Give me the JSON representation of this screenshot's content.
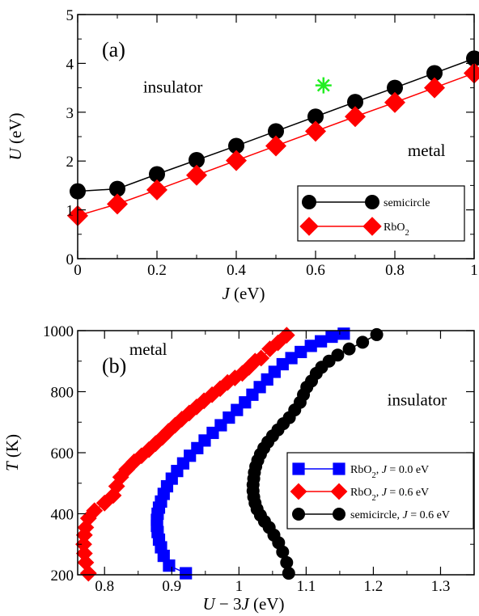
{
  "chart_data": [
    {
      "type": "line",
      "panel_label": "(a)",
      "xlabel_parts": [
        {
          "t": "J",
          "italic": true
        },
        {
          "t": " (eV)",
          "italic": false
        }
      ],
      "ylabel_parts": [
        {
          "t": "U",
          "italic": true
        },
        {
          "t": " (eV)",
          "italic": false
        }
      ],
      "xlim": [
        0,
        1
      ],
      "ylim": [
        0,
        5
      ],
      "xticks": [
        0,
        0.2,
        0.4,
        0.6,
        0.8,
        1
      ],
      "xtick_labels": [
        "0",
        "0.2",
        "0.4",
        "0.6",
        "0.8",
        "1"
      ],
      "yticks": [
        0,
        1,
        2,
        3,
        4,
        5
      ],
      "ytick_labels": [
        "0",
        "1",
        "2",
        "3",
        "4",
        "5"
      ],
      "grid": false,
      "legend_position": "bottom-right",
      "annotations": [
        {
          "text": "insulator",
          "x": 0.24,
          "y": 3.4
        },
        {
          "text": "metal",
          "x": 0.88,
          "y": 2.1
        }
      ],
      "star": {
        "x": 0.62,
        "y": 3.55,
        "color": "#22ee22"
      },
      "series": [
        {
          "name_parts": [
            {
              "t": "semicircle"
            }
          ],
          "marker": "circle",
          "color": "#000000",
          "x": [
            0,
            0.1,
            0.2,
            0.3,
            0.4,
            0.5,
            0.6,
            0.7,
            0.8,
            0.9,
            1.0
          ],
          "y": [
            1.38,
            1.43,
            1.73,
            2.02,
            2.31,
            2.61,
            2.91,
            3.21,
            3.5,
            3.8,
            4.1
          ]
        },
        {
          "name_parts": [
            {
              "t": "RbO"
            },
            {
              "t": "2",
              "sub": true
            }
          ],
          "marker": "diamond",
          "color": "#ff0000",
          "x": [
            0,
            0.1,
            0.2,
            0.3,
            0.4,
            0.5,
            0.6,
            0.7,
            0.8,
            0.9,
            1.0
          ],
          "y": [
            0.88,
            1.12,
            1.41,
            1.71,
            2.01,
            2.31,
            2.61,
            2.91,
            3.2,
            3.5,
            3.8
          ]
        }
      ]
    },
    {
      "type": "line",
      "panel_label": "(b)",
      "xlabel_parts": [
        {
          "t": "U",
          "italic": true
        },
        {
          "t": " − 3",
          "italic": false
        },
        {
          "t": "J",
          "italic": true
        },
        {
          "t": " (eV)",
          "italic": false
        }
      ],
      "ylabel_parts": [
        {
          "t": "T",
          "italic": true
        },
        {
          "t": " (K)",
          "italic": false
        }
      ],
      "xlim": [
        0.76,
        1.35
      ],
      "ylim": [
        200,
        1000
      ],
      "xticks": [
        0.8,
        0.9,
        1,
        1.1,
        1.2,
        1.3
      ],
      "xtick_labels": [
        "0.8",
        "0.9",
        "1",
        "1.1",
        "1.2",
        "1.3"
      ],
      "yticks": [
        200,
        400,
        600,
        800,
        1000
      ],
      "ytick_labels": [
        "200",
        "400",
        "600",
        "800",
        "1000"
      ],
      "grid": false,
      "legend_position": "bottom-right",
      "annotations": [
        {
          "text": "metal",
          "x": 0.865,
          "y": 920
        },
        {
          "text": "insulator",
          "x": 1.265,
          "y": 755
        }
      ],
      "series": [
        {
          "name_parts": [
            {
              "t": "RbO"
            },
            {
              "t": "2",
              "sub": true
            },
            {
              "t": ", "
            },
            {
              "t": "J",
              "italic": true
            },
            {
              "t": " = 0.0 eV"
            }
          ],
          "marker": "square",
          "color": "#0000ff",
          "x": [
            0.921,
            0.896,
            0.888,
            0.884,
            0.881,
            0.879,
            0.878,
            0.878,
            0.879,
            0.881,
            0.884,
            0.888,
            0.893,
            0.9,
            0.908,
            0.917,
            0.927,
            0.938,
            0.949,
            0.961,
            0.973,
            0.985,
            0.997,
            1.009,
            1.02,
            1.031,
            1.042,
            1.053,
            1.065,
            1.078,
            1.092,
            1.107,
            1.122,
            1.138,
            1.156
          ],
          "y": [
            205,
            230,
            262,
            290,
            315,
            340,
            360,
            380,
            400,
            420,
            440,
            465,
            490,
            515,
            540,
            565,
            590,
            615,
            640,
            665,
            690,
            715,
            740,
            765,
            790,
            815,
            840,
            865,
            890,
            910,
            930,
            950,
            965,
            980,
            990
          ]
        },
        {
          "name_parts": [
            {
              "t": "RbO"
            },
            {
              "t": "2",
              "sub": true
            },
            {
              "t": ", "
            },
            {
              "t": "J",
              "italic": true
            },
            {
              "t": " = 0.6 eV"
            }
          ],
          "marker": "diamond",
          "color": "#ff0000",
          "x": [
            0.776,
            0.772,
            0.77,
            0.769,
            0.77,
            0.772,
            0.776,
            0.785,
            0.8,
            0.813,
            0.818,
            0.824,
            0.833,
            0.844,
            0.855,
            0.866,
            0.876,
            0.886,
            0.895,
            0.905,
            0.915,
            0.926,
            0.937,
            0.948,
            0.96,
            0.972,
            0.983,
            0.994,
            1.005,
            1.015,
            1.024,
            1.033,
            1.046,
            1.058,
            1.071
          ],
          "y": [
            205,
            240,
            270,
            300,
            330,
            355,
            385,
            410,
            435,
            460,
            490,
            520,
            545,
            570,
            590,
            610,
            630,
            650,
            670,
            690,
            710,
            730,
            750,
            770,
            790,
            810,
            830,
            845,
            860,
            880,
            900,
            910,
            940,
            960,
            985
          ]
        },
        {
          "name_parts": [
            {
              "t": "semicircle, "
            },
            {
              "t": "J",
              "italic": true
            },
            {
              "t": " = 0.6 eV"
            }
          ],
          "marker": "circle",
          "color": "#000000",
          "x": [
            1.074,
            1.071,
            1.065,
            1.059,
            1.052,
            1.045,
            1.038,
            1.032,
            1.027,
            1.024,
            1.022,
            1.021,
            1.021,
            1.022,
            1.023,
            1.025,
            1.028,
            1.032,
            1.037,
            1.043,
            1.05,
            1.058,
            1.066,
            1.075,
            1.083,
            1.091,
            1.096,
            1.101,
            1.108,
            1.115,
            1.123,
            1.134,
            1.147,
            1.164,
            1.184,
            1.205
          ],
          "y": [
            205,
            240,
            275,
            305,
            330,
            355,
            375,
            395,
            415,
            435,
            455,
            475,
            495,
            515,
            535,
            555,
            575,
            595,
            615,
            635,
            655,
            675,
            695,
            715,
            740,
            765,
            790,
            815,
            835,
            860,
            880,
            900,
            920,
            940,
            962,
            987
          ]
        }
      ]
    }
  ]
}
